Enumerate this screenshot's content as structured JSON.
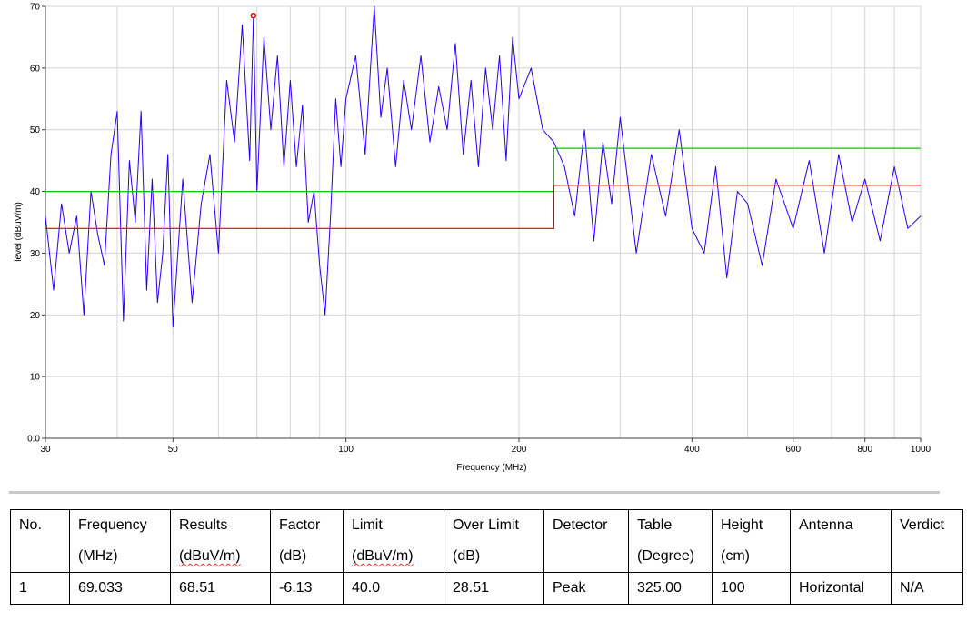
{
  "chart_data": {
    "type": "line",
    "xlabel": "Frequency (MHz)",
    "ylabel": "level (dBuV/m)",
    "x_scale": "log",
    "xlim": [
      30,
      1000
    ],
    "ylim": [
      0,
      70
    ],
    "x_ticks": [
      30,
      50,
      100,
      200,
      400,
      600,
      800,
      1000
    ],
    "y_ticks": [
      0,
      10,
      20,
      30,
      40,
      50,
      60,
      70
    ],
    "x_tick_labels": [
      "30",
      "50",
      "100",
      "200",
      "400",
      "600",
      "800",
      "1000"
    ],
    "y_tick_labels": [
      "0.0",
      "10",
      "20",
      "30",
      "40",
      "50",
      "60",
      "70"
    ],
    "grid": true,
    "series": [
      {
        "color": "#2400ff",
        "x": [
          30,
          31,
          32,
          33,
          34,
          35,
          36,
          37,
          38,
          39,
          40,
          41,
          42,
          43,
          44,
          45,
          46,
          47,
          48,
          49,
          50,
          52,
          54,
          56,
          58,
          60,
          62,
          64,
          66,
          68,
          69.033,
          70,
          72,
          74,
          76,
          78,
          80,
          82,
          84,
          86,
          88,
          90,
          92,
          94,
          96,
          98,
          100,
          104,
          108,
          112,
          115,
          118,
          122,
          126,
          130,
          135,
          140,
          145,
          150,
          155,
          160,
          165,
          170,
          175,
          180,
          185,
          190,
          195,
          200,
          210,
          220,
          230,
          240,
          250,
          260,
          270,
          280,
          290,
          300,
          320,
          340,
          360,
          380,
          400,
          420,
          440,
          460,
          480,
          500,
          530,
          560,
          600,
          640,
          680,
          720,
          760,
          800,
          850,
          900,
          950,
          1000
        ],
        "y": [
          36,
          24,
          38,
          30,
          36,
          20,
          40,
          33,
          28,
          46,
          53,
          19,
          45,
          35,
          53,
          24,
          42,
          22,
          30,
          46,
          18,
          42,
          22,
          38,
          46,
          30,
          58,
          48,
          67,
          45,
          68.51,
          40,
          65,
          50,
          62,
          44,
          58,
          44,
          54,
          35,
          40,
          28,
          20,
          36,
          55,
          44,
          55,
          62,
          46,
          70,
          52,
          60,
          44,
          58,
          50,
          62,
          48,
          57,
          50,
          64,
          46,
          58,
          44,
          60,
          50,
          62,
          45,
          65,
          55,
          60,
          50,
          48,
          44,
          36,
          50,
          32,
          48,
          38,
          52,
          30,
          46,
          36,
          50,
          34,
          30,
          44,
          26,
          40,
          38,
          28,
          42,
          34,
          45,
          30,
          46,
          35,
          42,
          32,
          44,
          34,
          36
        ]
      },
      {
        "color": "#00cc00",
        "x": [
          30,
          230,
          230,
          1000
        ],
        "y": [
          40,
          40,
          47,
          47
        ]
      },
      {
        "color": "#e00000",
        "x": [
          30,
          230,
          230,
          1000
        ],
        "y": [
          34,
          34,
          41,
          41
        ]
      }
    ],
    "markers": [
      {
        "x": 69.033,
        "y": 68.51,
        "color": "#e00000"
      }
    ]
  },
  "table": {
    "headers": [
      [
        "No.",
        ""
      ],
      [
        "Frequency",
        "(MHz)"
      ],
      [
        "Results",
        "(dBuV/m)"
      ],
      [
        "Factor",
        "(dB)"
      ],
      [
        "Limit",
        "(dBuV/m)"
      ],
      [
        "Over Limit",
        "(dB)"
      ],
      [
        "Detector",
        ""
      ],
      [
        "Table",
        "(Degree)"
      ],
      [
        "Height",
        "(cm)"
      ],
      [
        "Antenna",
        ""
      ],
      [
        "Verdict",
        ""
      ]
    ],
    "rows": [
      [
        "1",
        "69.033",
        "68.51",
        "-6.13",
        "40.0",
        "28.51",
        "Peak",
        "325.00",
        "100",
        "Horizontal",
        "N/A"
      ]
    ]
  }
}
